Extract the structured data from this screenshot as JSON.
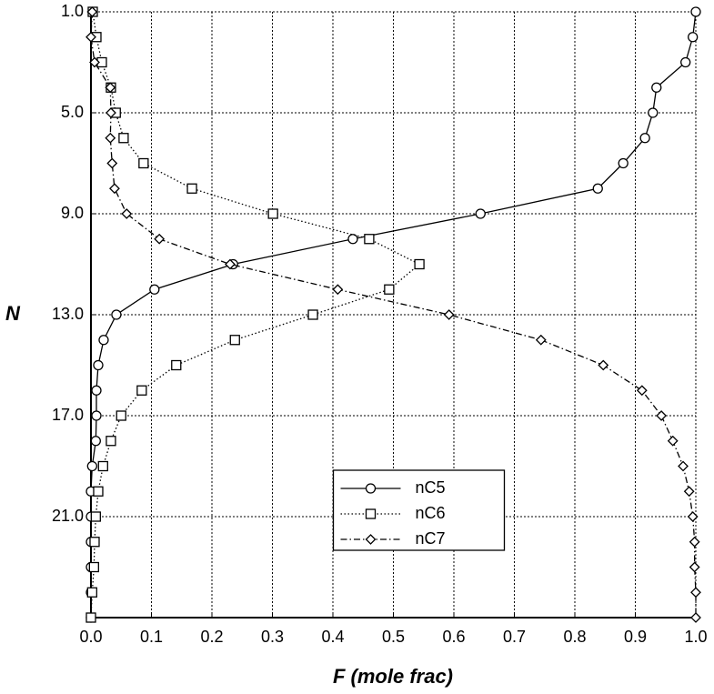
{
  "chart_data": {
    "type": "line",
    "xlabel": "F (mole frac)",
    "ylabel": "N",
    "y": [
      1,
      2,
      3,
      4,
      5,
      6,
      7,
      8,
      9,
      10,
      11,
      12,
      13,
      14,
      15,
      16,
      17,
      18,
      19,
      20,
      21,
      22,
      23,
      24,
      25
    ],
    "series": [
      {
        "name": "nC5",
        "color": "#000000",
        "marker": "circle",
        "linestyle": "solid",
        "values": [
          1.0,
          0.995,
          0.983,
          0.935,
          0.929,
          0.916,
          0.88,
          0.838,
          0.644,
          0.433,
          0.235,
          0.105,
          0.042,
          0.021,
          0.012,
          0.009,
          0.009,
          0.008,
          0.002,
          0,
          0,
          0,
          0,
          0,
          0
        ]
      },
      {
        "name": "nC6",
        "color": "#000000",
        "marker": "square",
        "linestyle": "dotted",
        "values": [
          0.003,
          0.009,
          0.018,
          0.033,
          0.041,
          0.054,
          0.087,
          0.167,
          0.301,
          0.46,
          0.543,
          0.493,
          0.367,
          0.238,
          0.141,
          0.084,
          0.05,
          0.033,
          0.02,
          0.012,
          0.008,
          0.006,
          0.005,
          0.002,
          0
        ]
      },
      {
        "name": "nC7",
        "color": "#000000",
        "marker": "diamond",
        "linestyle": "dashdot",
        "values": [
          0.002,
          0,
          0.006,
          0.032,
          0.033,
          0.032,
          0.035,
          0.039,
          0.059,
          0.113,
          0.23,
          0.408,
          0.592,
          0.744,
          0.847,
          0.911,
          0.943,
          0.962,
          0.979,
          0.989,
          0.995,
          0.998,
          0.998,
          1.0,
          1.0
        ]
      }
    ],
    "xlim": [
      0,
      1
    ],
    "xticks": [
      {
        "value": 0,
        "label": "0.0"
      },
      0.1,
      0.2,
      0.3,
      0.4,
      0.5,
      0.6,
      0.7,
      0.8,
      0.9,
      {
        "value": 1,
        "label": "1.0"
      }
    ],
    "ylim": [
      1,
      25
    ],
    "y_inverted": true,
    "yticks": [
      {
        "value": 1,
        "label": "1.0"
      },
      {
        "value": 5,
        "label": "5.0"
      },
      {
        "value": 9,
        "label": "9.0"
      },
      {
        "value": 13,
        "label": "13.0"
      },
      {
        "value": 17,
        "label": "17.0"
      },
      {
        "value": 21,
        "label": "21.0"
      }
    ],
    "grid": true,
    "legend": "lower-center"
  }
}
